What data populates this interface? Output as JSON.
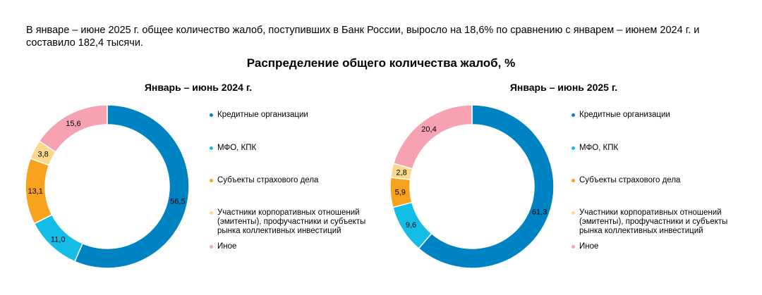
{
  "intro_text": "В январе – июне 2025 г. общее количество жалоб, поступивших в Банк России, выросло на 18,6% по сравнению с январем – июнем 2024 г. и составило 182,4 тысячи.",
  "chart_data": [
    {
      "type": "pie",
      "donut": true,
      "title": "Распределение общего количества жалоб, %",
      "subtitle": "Январь – июнь 2024 г.",
      "categories": [
        "Кредитные организации",
        "МФО, КПК",
        "Субъекты страхового дела",
        "Участники корпоративных отношений (эмитенты), профучастники и субъекты рынка коллективных инвестиций",
        "Иное"
      ],
      "values": [
        56.5,
        11.0,
        13.1,
        3.8,
        15.6
      ],
      "data_labels": [
        "56,5",
        "11,0",
        "13,1",
        "3,8",
        "15,6"
      ],
      "colors": [
        "#0083c3",
        "#14bde6",
        "#f6a21d",
        "#fbd98b",
        "#f6a2b2"
      ],
      "legend_placement": "right"
    },
    {
      "type": "pie",
      "donut": true,
      "title": "Распределение общего количества жалоб, %",
      "subtitle": "Январь – июнь 2025 г.",
      "categories": [
        "Кредитные организации",
        "МФО, КПК",
        "Субъекты страхового дела",
        "Участники корпоративных отношений (эмитенты), профучастники и субъекты рынка коллективных инвестиций",
        "Иное"
      ],
      "values": [
        61.3,
        9.6,
        5.9,
        2.8,
        20.4
      ],
      "data_labels": [
        "61,3",
        "9,6",
        "5,9",
        "2,8",
        "20,4"
      ],
      "colors": [
        "#0083c3",
        "#14bde6",
        "#f6a21d",
        "#fbd98b",
        "#f6a2b2"
      ],
      "legend_placement": "right"
    }
  ]
}
